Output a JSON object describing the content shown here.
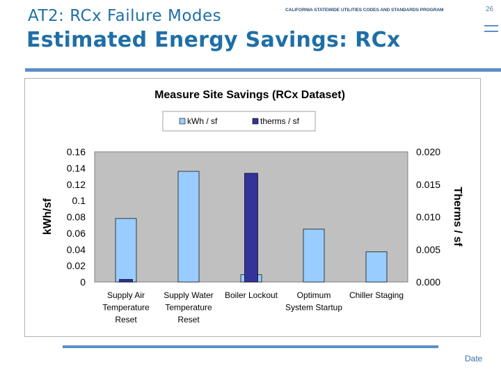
{
  "header": {
    "subtitle": "AT2: RCx Failure Modes",
    "title": "Estimated Energy Savings: RCx",
    "program": "CALIFORNIA STATEWIDE UTILITIES CODES AND STANDARDS PROGRAM",
    "page_number": "26"
  },
  "footer": {
    "date": "Date"
  },
  "colors": {
    "accent": "#1f6fa6",
    "rule": "#5b8fc7",
    "kwh": "#99ccff",
    "therms": "#333399",
    "plot_bg": "#c0c0c0"
  },
  "chart_data": {
    "type": "bar",
    "title": "Measure Site Savings (RCx Dataset)",
    "categories": [
      [
        "Supply Air",
        "Temperature",
        "Reset"
      ],
      [
        "Supply Water",
        "Temperature",
        "Reset"
      ],
      [
        "Boiler Lockout"
      ],
      [
        "Optimum",
        "System Startup"
      ],
      [
        "Chiller Staging"
      ]
    ],
    "series": [
      {
        "name": "kWh / sf",
        "axis": "left",
        "values": [
          0.078,
          0.136,
          0.009,
          0.065,
          0.037
        ]
      },
      {
        "name": "therms / sf",
        "axis": "right",
        "values": [
          0.0004,
          0.0,
          0.0167,
          0.0,
          0.0
        ]
      }
    ],
    "ylabel": "kWh/sf",
    "y2label": "Therms / sf",
    "ylim": [
      0,
      0.16
    ],
    "y2lim": [
      0,
      0.02
    ],
    "yticks": [
      "0",
      "0.02",
      "0.04",
      "0.06",
      "0.08",
      "0.1",
      "0.12",
      "0.14",
      "0.16"
    ],
    "y2ticks": [
      "0.000",
      "0.005",
      "0.010",
      "0.015",
      "0.020"
    ],
    "legend": "top",
    "grid": false
  }
}
